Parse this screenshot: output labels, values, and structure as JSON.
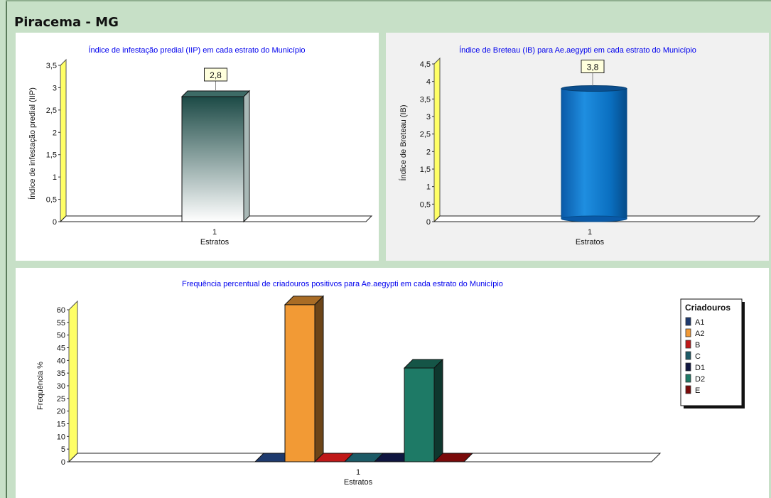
{
  "page": {
    "title": "Piracema - MG"
  },
  "colors": {
    "background": "#c7e0c7",
    "title_text": "#0000ee",
    "iip_bar_top": "#1c4a46",
    "iip_bar_bottom": "#ffffff",
    "ib_bar": "#0a70c0",
    "axis_wall": "#ffff66"
  },
  "chart_data": [
    {
      "id": "iip",
      "type": "bar",
      "title": "Índice de infestação predial (IIP) em cada estrato do Município",
      "xlabel": "Estratos",
      "ylabel": "Índice de infestação predial (IIP)",
      "categories": [
        "1"
      ],
      "values": [
        2.8
      ],
      "data_labels": [
        "2,8"
      ],
      "ylim": [
        0,
        3.5
      ],
      "yticks": [
        "0",
        "0,5",
        "1",
        "1,5",
        "2",
        "2,5",
        "3",
        "3,5"
      ],
      "grid": false
    },
    {
      "id": "ib",
      "type": "bar",
      "title": "Índice de Breteau (IB) para Ae.aegypti em cada estrato do Município",
      "xlabel": "Estratos",
      "ylabel": "Índice de Breteau (IB)",
      "categories": [
        "1"
      ],
      "values": [
        3.8
      ],
      "data_labels": [
        "3,8"
      ],
      "ylim": [
        0,
        4.5
      ],
      "yticks": [
        "0",
        "0,5",
        "1",
        "1,5",
        "2",
        "2,5",
        "3",
        "3,5",
        "4",
        "4,5"
      ],
      "grid": false
    },
    {
      "id": "freq",
      "type": "bar",
      "title": "Frequência percentual de criadouros positivos para Ae.aegypti em cada estrato do Município",
      "xlabel": "Estratos",
      "ylabel": "Frequência %",
      "categories": [
        "1"
      ],
      "ylim": [
        0,
        60
      ],
      "yticks": [
        "0",
        "5",
        "10",
        "15",
        "20",
        "25",
        "30",
        "35",
        "40",
        "45",
        "50",
        "55",
        "60"
      ],
      "legend_title": "Criadouros",
      "legend_position": "right",
      "grid": false,
      "series": [
        {
          "name": "A1",
          "values": [
            0
          ],
          "color": "#1e3a6e"
        },
        {
          "name": "A2",
          "values": [
            62
          ],
          "color": "#f29a35"
        },
        {
          "name": "B",
          "values": [
            0
          ],
          "color": "#c01818"
        },
        {
          "name": "C",
          "values": [
            0
          ],
          "color": "#1c5a66"
        },
        {
          "name": "D1",
          "values": [
            0
          ],
          "color": "#0f1640"
        },
        {
          "name": "D2",
          "values": [
            37
          ],
          "color": "#1e7a66"
        },
        {
          "name": "E",
          "values": [
            0
          ],
          "color": "#7a0a0a"
        }
      ]
    }
  ]
}
